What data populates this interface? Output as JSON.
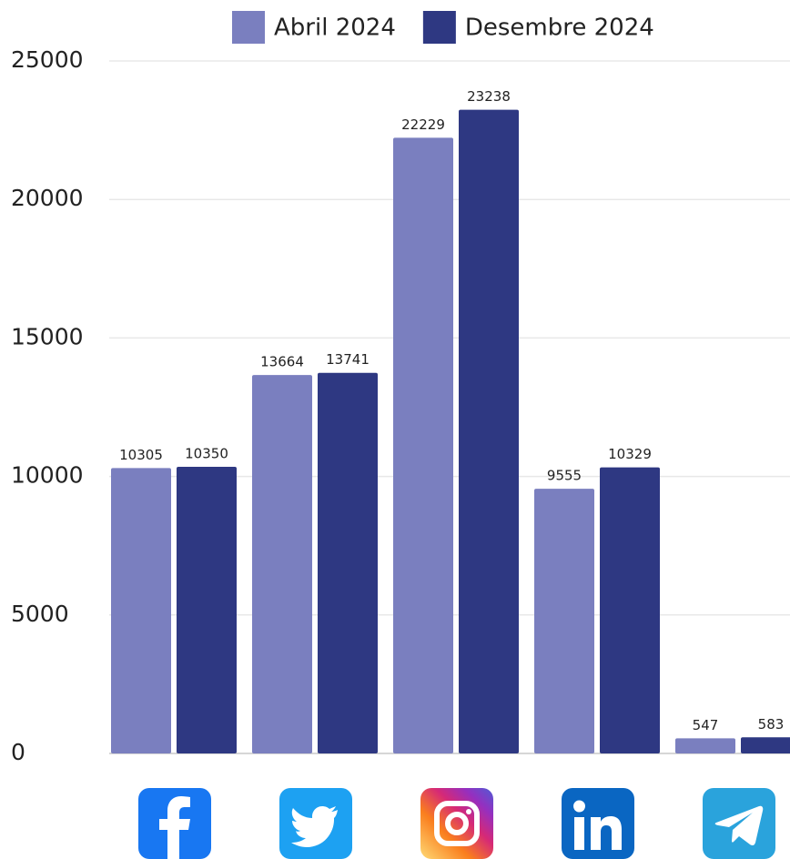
{
  "chart_data": {
    "type": "bar",
    "categories": [
      null,
      null,
      null,
      null,
      null
    ],
    "series": [
      {
        "name": "Abril 2024",
        "color": "#7a7fbf",
        "values": [
          10305,
          13664,
          22229,
          9555,
          547
        ]
      },
      {
        "name": "Desembre 2024",
        "color": "#2e3882",
        "values": [
          10350,
          13741,
          23238,
          10329,
          583
        ]
      }
    ],
    "ylim": [
      0,
      25000
    ],
    "yticks": [
      0,
      5000,
      10000,
      15000,
      20000,
      25000
    ],
    "grid": true,
    "legend": "top"
  }
}
